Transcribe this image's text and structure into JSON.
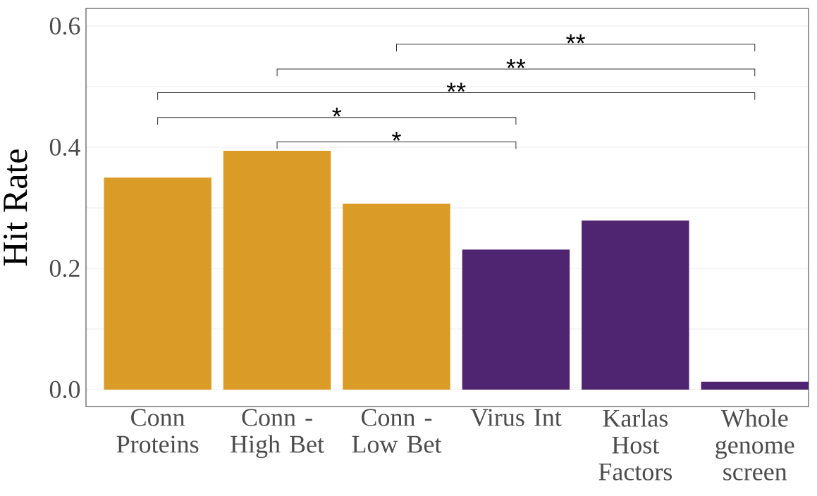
{
  "chart_data": {
    "type": "bar",
    "ylabel": "Hit Rate",
    "categories": [
      "Conn Proteins",
      "Conn - High Bet",
      "Conn - Low Bet",
      "Virus Int",
      "Karlas Host Factors",
      "Whole genome screen"
    ],
    "values": [
      0.35,
      0.394,
      0.307,
      0.231,
      0.279,
      0.013
    ],
    "colors": [
      "#da9c27",
      "#da9c27",
      "#da9c27",
      "#4f2470",
      "#4f2470",
      "#4f2470"
    ],
    "ylim": [
      -0.028,
      0.629
    ],
    "yticks": [
      {
        "value": 0,
        "label": "0.0"
      },
      {
        "value": 0.1,
        "label": null
      },
      0.2,
      {
        "value": 0.3,
        "label": null
      },
      0.4,
      {
        "value": 0.5,
        "label": null
      },
      0.6
    ],
    "grid": "y",
    "annotations": [
      "**",
      "**",
      "**",
      "*",
      "*"
    ]
  }
}
